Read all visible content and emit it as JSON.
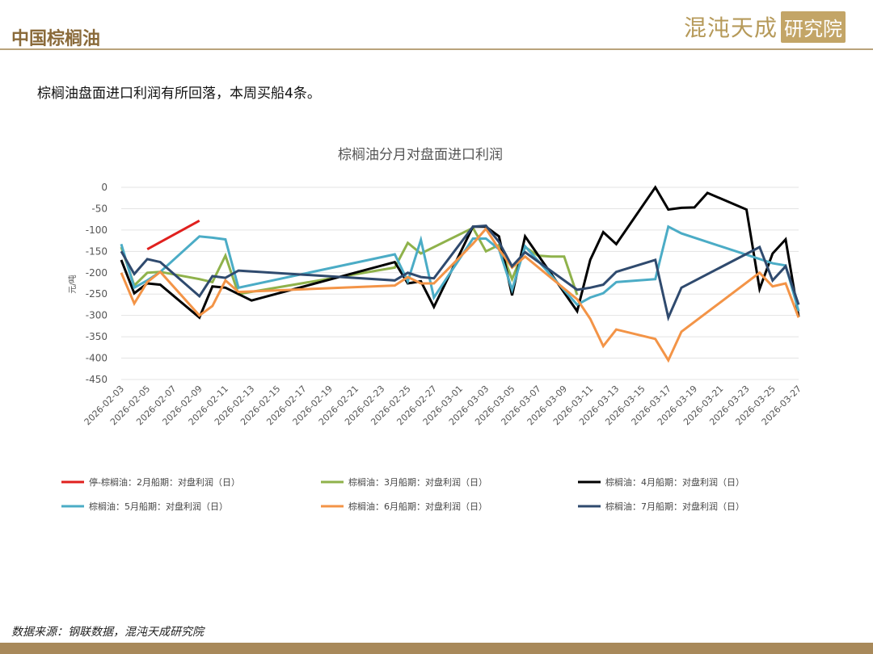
{
  "header": {
    "title": "中国棕榈油",
    "brand_main": "混沌天成",
    "brand_box": "研究院"
  },
  "subtitle": "棕榈油盘面进口利润有所回落，本周买船4条。",
  "footer": {
    "source": "数据来源：钢联数据，混沌天成研究院"
  },
  "colors": {
    "s2": "#e0201e",
    "s3": "#8fb24b",
    "s4": "#000000",
    "s5": "#4bacc6",
    "s6": "#f39447",
    "s7": "#2f4a6e"
  },
  "chart_data": {
    "type": "line",
    "title": "棕榈油分月对盘面进口利润",
    "ylabel": "元/吨",
    "ylim": [
      -450,
      0
    ],
    "yticks": [
      0,
      -50,
      -100,
      -150,
      -200,
      -250,
      -300,
      -350,
      -400,
      -450
    ],
    "x_tick_labels": [
      "2026-02-03",
      "2026-02-05",
      "2026-02-07",
      "2026-02-09",
      "2026-02-11",
      "2026-02-13",
      "2026-02-15",
      "2026-02-17",
      "2026-02-19",
      "2026-02-21",
      "2026-02-23",
      "2026-02-25",
      "2026-02-27",
      "2026-03-01",
      "2026-03-03",
      "2026-03-05",
      "2026-03-07",
      "2026-03-09",
      "2026-03-11",
      "2026-03-13",
      "2026-03-15",
      "2026-03-17",
      "2026-03-19",
      "2026-03-21",
      "2026-03-23",
      "2026-03-25",
      "2026-03-27"
    ],
    "grid": true,
    "legend_position": "bottom",
    "series": [
      {
        "name": "停-棕榈油：2月船期：对盘利润（日）",
        "color_key": "s2",
        "points": [
          [
            "2026-02-05",
            -145
          ],
          [
            "2026-02-09",
            -78
          ]
        ]
      },
      {
        "name": "棕榈油：3月船期：对盘利润（日）",
        "color_key": "s3",
        "points": [
          [
            "2026-02-03",
            -140
          ],
          [
            "2026-02-04",
            -230
          ],
          [
            "2026-02-05",
            -200
          ],
          [
            "2026-02-06",
            -198
          ],
          [
            "2026-02-09",
            -215
          ],
          [
            "2026-02-10",
            -222
          ],
          [
            "2026-02-11",
            -160
          ],
          [
            "2026-02-12",
            -250
          ],
          [
            "2026-02-24",
            -188
          ],
          [
            "2026-02-25",
            -130
          ],
          [
            "2026-02-26",
            -155
          ],
          [
            "2026-03-02",
            -95
          ],
          [
            "2026-03-03",
            -150
          ],
          [
            "2026-03-04",
            -135
          ],
          [
            "2026-03-05",
            -215
          ],
          [
            "2026-03-06",
            -140
          ],
          [
            "2026-03-07",
            -160
          ],
          [
            "2026-03-08",
            -162
          ],
          [
            "2026-03-09",
            -162
          ],
          [
            "2026-03-10",
            -252
          ]
        ]
      },
      {
        "name": "棕榈油：4月船期：对盘利润（日）",
        "color_key": "s4",
        "points": [
          [
            "2026-02-03",
            -170
          ],
          [
            "2026-02-04",
            -248
          ],
          [
            "2026-02-05",
            -225
          ],
          [
            "2026-02-06",
            -228
          ],
          [
            "2026-02-09",
            -305
          ],
          [
            "2026-02-10",
            -232
          ],
          [
            "2026-02-11",
            -235
          ],
          [
            "2026-02-13",
            -265
          ],
          [
            "2026-02-24",
            -175
          ],
          [
            "2026-02-25",
            -225
          ],
          [
            "2026-02-26",
            -220
          ],
          [
            "2026-02-27",
            -280
          ],
          [
            "2026-03-02",
            -92
          ],
          [
            "2026-03-03",
            -92
          ],
          [
            "2026-03-04",
            -115
          ],
          [
            "2026-03-05",
            -253
          ],
          [
            "2026-03-06",
            -115
          ],
          [
            "2026-03-10",
            -290
          ],
          [
            "2026-03-11",
            -170
          ],
          [
            "2026-03-12",
            -105
          ],
          [
            "2026-03-13",
            -133
          ],
          [
            "2026-03-16",
            0
          ],
          [
            "2026-03-17",
            -52
          ],
          [
            "2026-03-18",
            -48
          ],
          [
            "2026-03-19",
            -47
          ],
          [
            "2026-03-20",
            -13
          ],
          [
            "2026-03-23",
            -52
          ],
          [
            "2026-03-24",
            -238
          ],
          [
            "2026-03-25",
            -155
          ],
          [
            "2026-03-26",
            -122
          ],
          [
            "2026-03-27",
            -303
          ]
        ]
      },
      {
        "name": "棕榈油：5月船期：对盘利润（日）",
        "color_key": "s5",
        "points": [
          [
            "2026-02-03",
            -133
          ],
          [
            "2026-02-04",
            -235
          ],
          [
            "2026-02-05",
            -218
          ],
          [
            "2026-02-06",
            -198
          ],
          [
            "2026-02-09",
            -115
          ],
          [
            "2026-02-10",
            -118
          ],
          [
            "2026-02-11",
            -122
          ],
          [
            "2026-02-12",
            -235
          ],
          [
            "2026-02-24",
            -157
          ],
          [
            "2026-02-25",
            -220
          ],
          [
            "2026-02-26",
            -123
          ],
          [
            "2026-02-27",
            -258
          ],
          [
            "2026-03-02",
            -120
          ],
          [
            "2026-03-03",
            -120
          ],
          [
            "2026-03-04",
            -145
          ],
          [
            "2026-03-05",
            -240
          ],
          [
            "2026-03-06",
            -138
          ],
          [
            "2026-03-10",
            -275
          ],
          [
            "2026-03-11",
            -258
          ],
          [
            "2026-03-12",
            -248
          ],
          [
            "2026-03-13",
            -222
          ],
          [
            "2026-03-16",
            -215
          ],
          [
            "2026-03-17",
            -92
          ],
          [
            "2026-03-18",
            -108
          ],
          [
            "2026-03-25",
            -178
          ],
          [
            "2026-03-26",
            -183
          ],
          [
            "2026-03-27",
            -290
          ]
        ]
      },
      {
        "name": "棕榈油：6月船期：对盘利润（日）",
        "color_key": "s6",
        "points": [
          [
            "2026-02-03",
            -200
          ],
          [
            "2026-02-04",
            -272
          ],
          [
            "2026-02-05",
            -222
          ],
          [
            "2026-02-06",
            -198
          ],
          [
            "2026-02-09",
            -300
          ],
          [
            "2026-02-10",
            -278
          ],
          [
            "2026-02-11",
            -218
          ],
          [
            "2026-02-12",
            -245
          ],
          [
            "2026-02-24",
            -230
          ],
          [
            "2026-02-25",
            -210
          ],
          [
            "2026-02-26",
            -225
          ],
          [
            "2026-02-27",
            -225
          ],
          [
            "2026-03-02",
            -132
          ],
          [
            "2026-03-03",
            -97
          ],
          [
            "2026-03-04",
            -145
          ],
          [
            "2026-03-05",
            -188
          ],
          [
            "2026-03-06",
            -162
          ],
          [
            "2026-03-10",
            -262
          ],
          [
            "2026-03-11",
            -308
          ],
          [
            "2026-03-12",
            -372
          ],
          [
            "2026-03-13",
            -333
          ],
          [
            "2026-03-16",
            -355
          ],
          [
            "2026-03-17",
            -405
          ],
          [
            "2026-03-18",
            -338
          ],
          [
            "2026-03-24",
            -200
          ],
          [
            "2026-03-25",
            -232
          ],
          [
            "2026-03-26",
            -225
          ],
          [
            "2026-03-27",
            -305
          ]
        ]
      },
      {
        "name": "棕榈油：7月船期：对盘利润（日）",
        "color_key": "s7",
        "points": [
          [
            "2026-02-03",
            -150
          ],
          [
            "2026-02-04",
            -203
          ],
          [
            "2026-02-05",
            -168
          ],
          [
            "2026-02-06",
            -175
          ],
          [
            "2026-02-09",
            -255
          ],
          [
            "2026-02-10",
            -208
          ],
          [
            "2026-02-11",
            -212
          ],
          [
            "2026-02-12",
            -195
          ],
          [
            "2026-02-24",
            -218
          ],
          [
            "2026-02-25",
            -200
          ],
          [
            "2026-02-26",
            -210
          ],
          [
            "2026-02-27",
            -213
          ],
          [
            "2026-03-02",
            -92
          ],
          [
            "2026-03-03",
            -90
          ],
          [
            "2026-03-04",
            -128
          ],
          [
            "2026-03-05",
            -185
          ],
          [
            "2026-03-06",
            -152
          ],
          [
            "2026-03-10",
            -240
          ],
          [
            "2026-03-11",
            -235
          ],
          [
            "2026-03-12",
            -228
          ],
          [
            "2026-03-13",
            -198
          ],
          [
            "2026-03-16",
            -170
          ],
          [
            "2026-03-17",
            -305
          ],
          [
            "2026-03-18",
            -235
          ],
          [
            "2026-03-24",
            -140
          ],
          [
            "2026-03-25",
            -218
          ],
          [
            "2026-03-26",
            -185
          ],
          [
            "2026-03-27",
            -275
          ]
        ]
      }
    ]
  }
}
